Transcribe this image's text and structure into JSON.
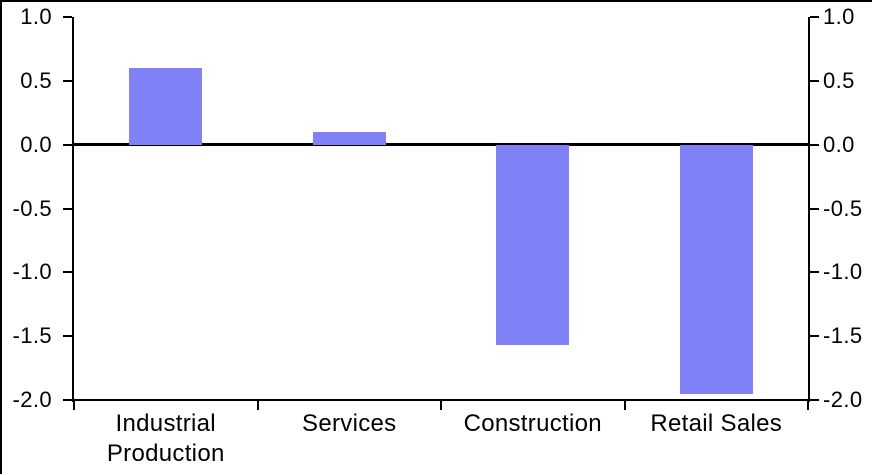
{
  "chart_data": {
    "type": "bar",
    "categories": [
      "Industrial Production",
      "Services",
      "Construction",
      "Retail Sales"
    ],
    "values": [
      0.6,
      0.1,
      -1.57,
      -1.95
    ],
    "title": "",
    "xlabel": "",
    "ylabel": "",
    "ylim": [
      -2.0,
      1.0
    ],
    "ytick_values": [
      1.0,
      0.5,
      0.0,
      -0.5,
      -1.0,
      -1.5,
      -2.0
    ],
    "ytick_labels": [
      "1.0",
      "0.5",
      "0.0",
      "-0.5",
      "-1.0",
      "-1.5",
      "-2.0"
    ],
    "legend": null,
    "grid": false,
    "dual_y_axis": true,
    "zero_line": true
  },
  "colors": {
    "bar_fill": "#8181F7",
    "axis": "#000000",
    "background": "#FFFFFF",
    "frame_border": "#000000"
  }
}
